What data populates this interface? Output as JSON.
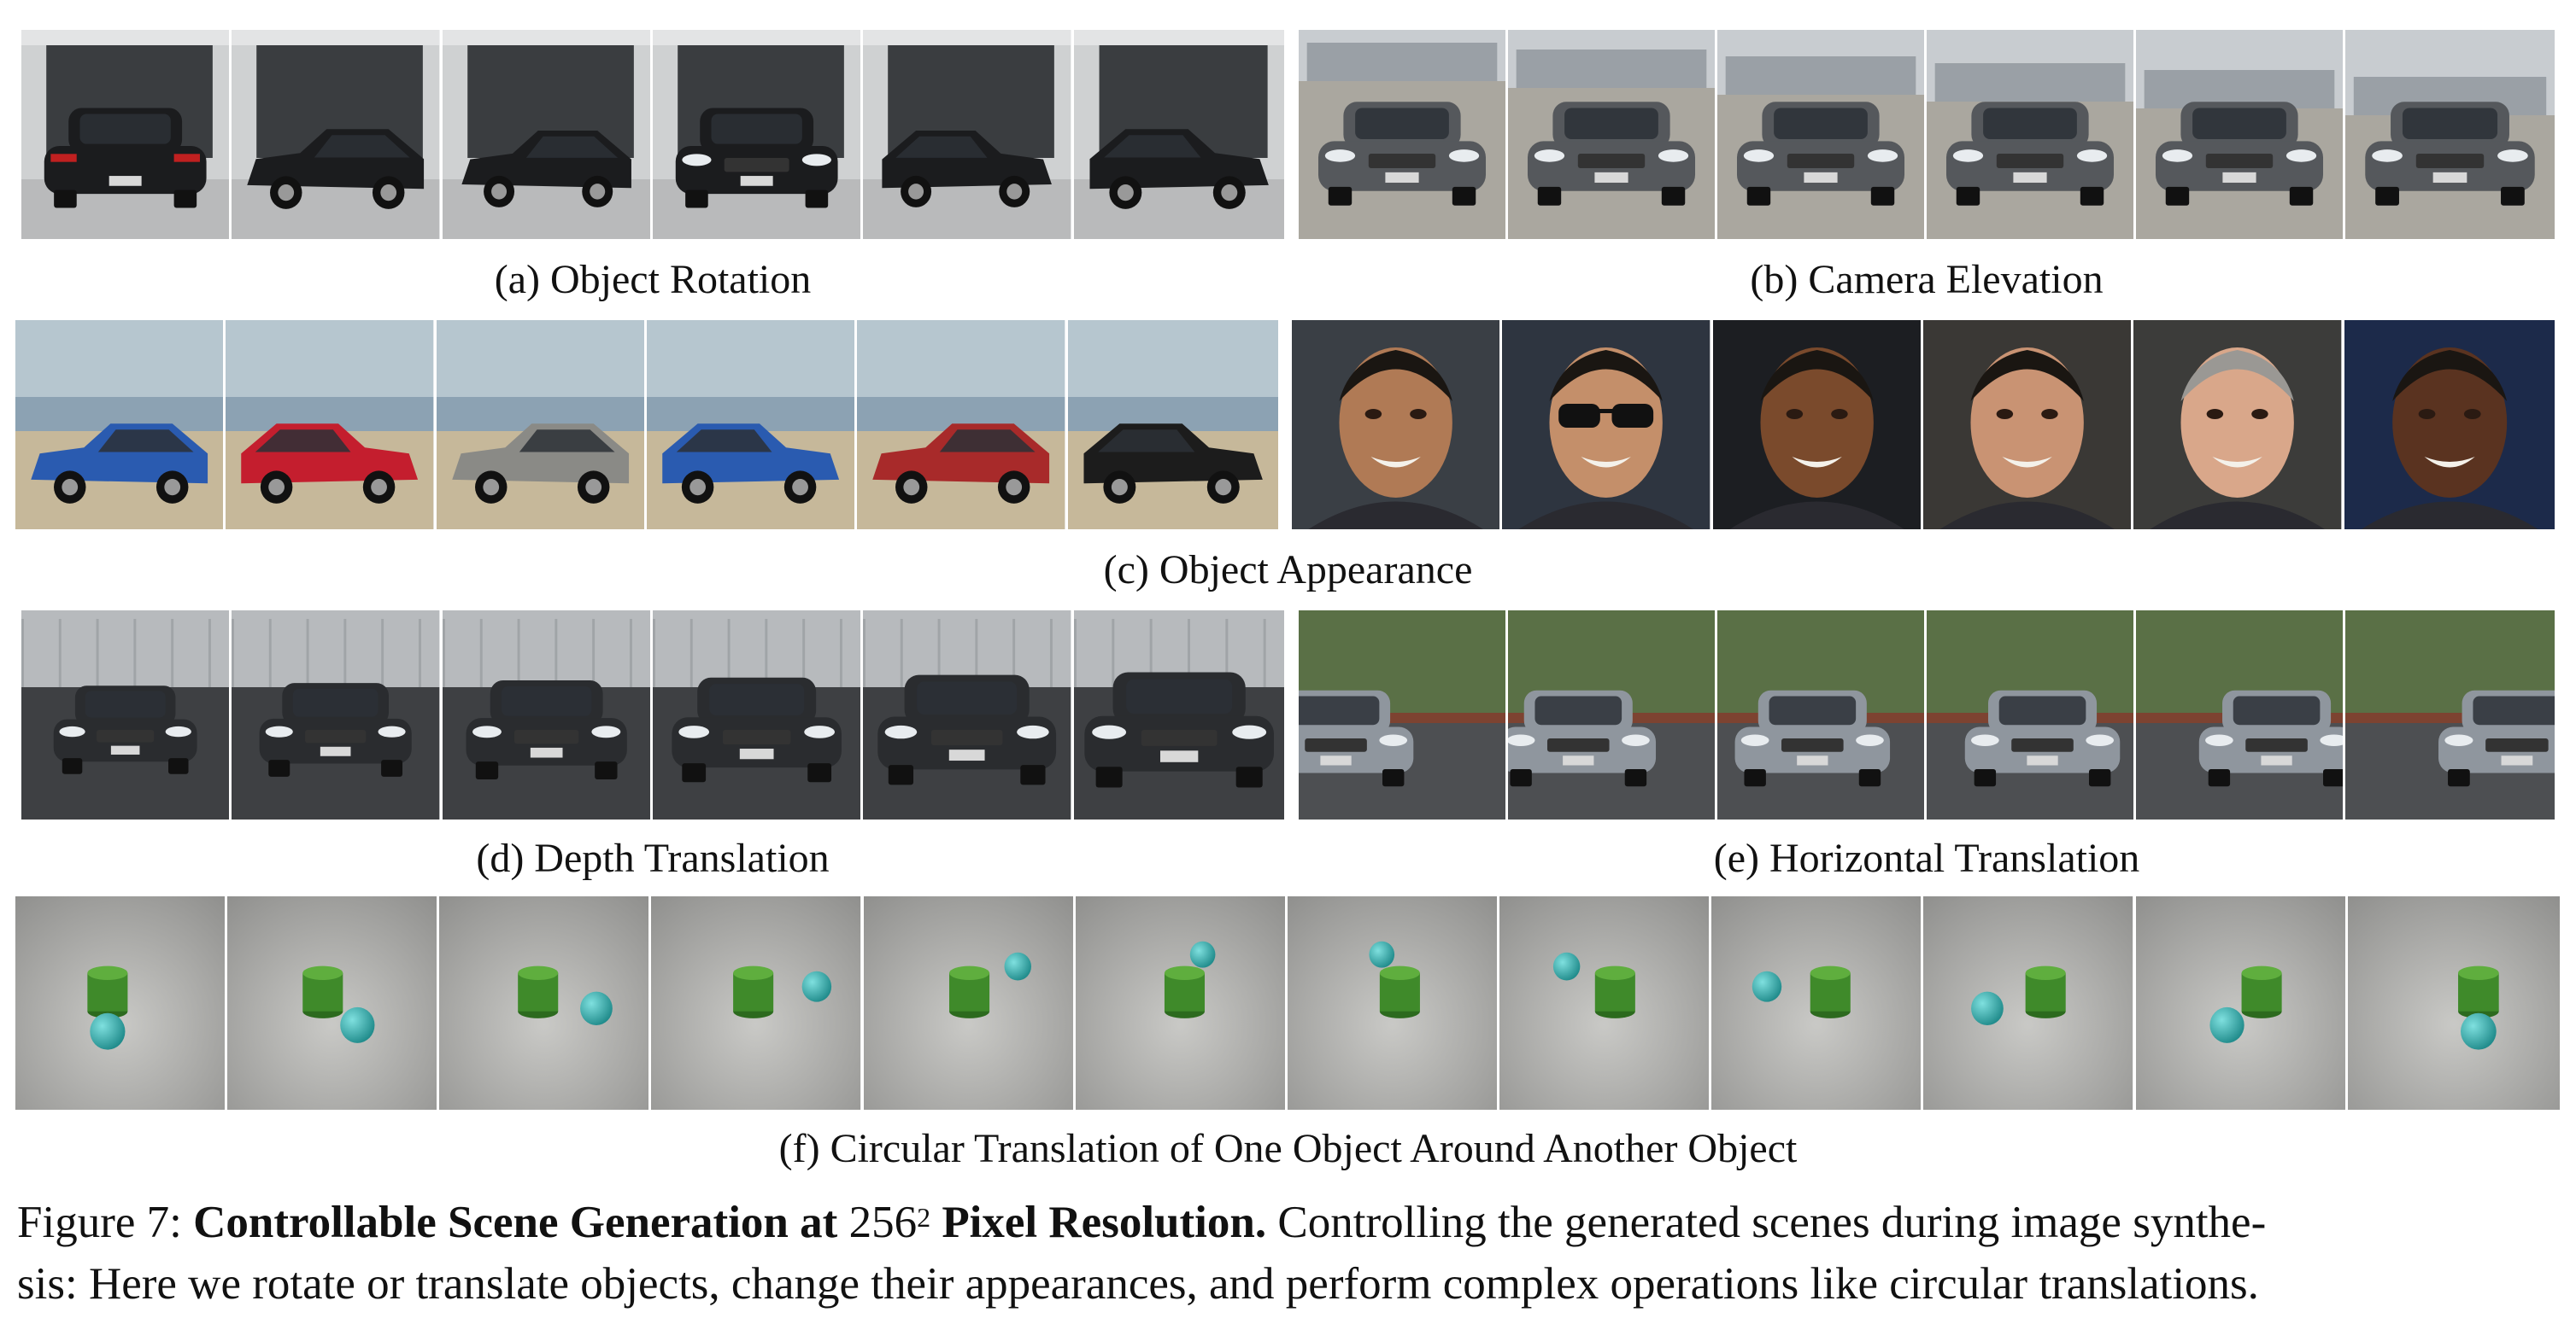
{
  "panels": {
    "a": {
      "caption": "(a) Object Rotation"
    },
    "b": {
      "caption": "(b) Camera Elevation"
    },
    "c": {
      "caption": "(c) Object Appearance"
    },
    "d": {
      "caption": "(d) Depth Translation"
    },
    "e": {
      "caption": "(e) Horizontal Translation"
    },
    "f": {
      "caption": "(f) Circular Translation of One Object Around Another Object"
    }
  },
  "figure": {
    "label": "Figure 7:",
    "title_part1": "Controllable Scene Generation at",
    "title_math_base": "256",
    "title_math_exp": "2",
    "title_part2": "Pixel Resolution.",
    "body_line1": "Controlling the generated scenes during image synthe-",
    "body_line2": "sis: Here we rotate or translate objects, change their appearances, and perform complex operations like circular translations."
  },
  "colors": {
    "appearance_car_bodies": [
      "#2a5bb0",
      "#c41e2e",
      "#8a8a86",
      "#2a5bb0",
      "#a82a2a",
      "#1c1c1c"
    ],
    "face_skin_tones": [
      "#b07a55",
      "#c48f6a",
      "#7a4a2c",
      "#c99373",
      "#d9a78a",
      "#5a3320"
    ],
    "sphere_color": "#1f8a8a",
    "cylinder_color": "#3f8a2a"
  }
}
